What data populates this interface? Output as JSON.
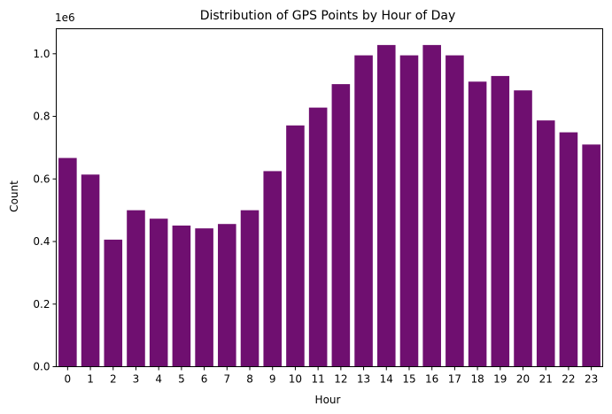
{
  "chart_data": {
    "type": "bar",
    "title": "Distribution of GPS Points by Hour of Day",
    "xlabel": "Hour",
    "ylabel": "Count",
    "y_offset_label": "1e6",
    "categories": [
      "0",
      "1",
      "2",
      "3",
      "4",
      "5",
      "6",
      "7",
      "8",
      "9",
      "10",
      "11",
      "12",
      "13",
      "14",
      "15",
      "16",
      "17",
      "18",
      "19",
      "20",
      "21",
      "22",
      "23"
    ],
    "values": [
      667000,
      614000,
      406000,
      500000,
      473000,
      451000,
      442000,
      456000,
      500000,
      625000,
      771000,
      828000,
      903000,
      995000,
      1028000,
      995000,
      1028000,
      995000,
      911000,
      929000,
      883000,
      787000,
      749000,
      710000
    ],
    "ylim": [
      0,
      1080000
    ],
    "yticks": [
      0,
      200000,
      400000,
      600000,
      800000,
      1000000
    ],
    "ytick_labels": [
      "0.0",
      "0.2",
      "0.4",
      "0.6",
      "0.8",
      "1.0"
    ],
    "bar_color": "#6f0f70",
    "grid": false,
    "legend": "none"
  }
}
